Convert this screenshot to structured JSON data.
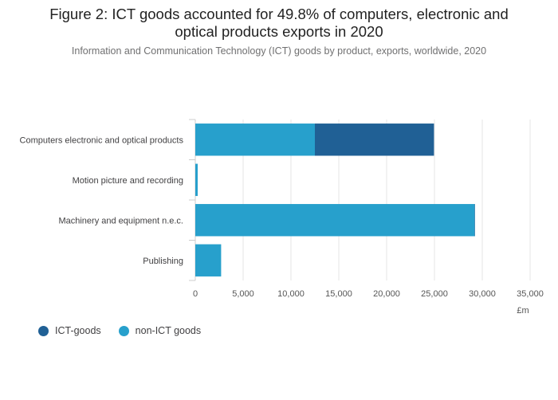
{
  "title_line1": "Figure 2: ICT goods accounted for 49.8% of computers, electronic and",
  "title_line2": "optical products exports in 2020",
  "subtitle": "Information and Communication Technology (ICT) goods by product, exports, worldwide, 2020",
  "chart_data": {
    "type": "bar",
    "orientation": "horizontal",
    "stacked": true,
    "categories": [
      "Computers electronic and optical products",
      "Motion picture and recording",
      "Machinery and equipment n.e.c.",
      "Publishing"
    ],
    "series": [
      {
        "name": "non-ICT goods",
        "color": "#27a0cc",
        "values": [
          12500,
          250,
          29200,
          2700
        ]
      },
      {
        "name": "ICT-goods",
        "color": "#206095",
        "values": [
          12450,
          0,
          30,
          0
        ]
      }
    ],
    "xlim": [
      0,
      35000
    ],
    "xticks": [
      0,
      5000,
      10000,
      15000,
      20000,
      25000,
      30000,
      35000
    ],
    "xtick_labels": [
      "0",
      "5,000",
      "10,000",
      "15,000",
      "20,000",
      "25,000",
      "30,000",
      "35,000"
    ],
    "xlabel": "£m",
    "ylabel": "",
    "grid": true,
    "legend_position": "bottom-left"
  },
  "legend": [
    {
      "label": "ICT-goods",
      "color": "#206095"
    },
    {
      "label": "non-ICT goods",
      "color": "#27a0cc"
    }
  ]
}
